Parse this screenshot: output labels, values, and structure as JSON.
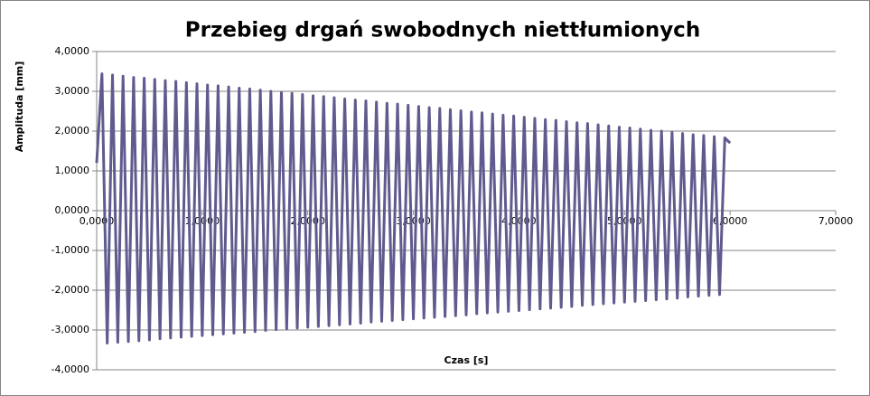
{
  "chart_data": {
    "type": "line",
    "title": "Przebieg drgań swobodnych niettłumionych",
    "xlabel": "Czas [s]",
    "ylabel": "Amplituda [mm]",
    "x": [
      0,
      0.05,
      0.1,
      0.15,
      0.2,
      0.25,
      0.3,
      0.35,
      0.4,
      0.45,
      0.5,
      0.55,
      0.6,
      0.65,
      0.7,
      0.75,
      0.8,
      0.85,
      0.9,
      0.95,
      1,
      1.05,
      1.1,
      1.15,
      1.2,
      1.25,
      1.3,
      1.35,
      1.4,
      1.45,
      1.5,
      1.55,
      1.6,
      1.65,
      1.7,
      1.75,
      1.8,
      1.85,
      1.9,
      1.95,
      2,
      2.05,
      2.1,
      2.15,
      2.2,
      2.25,
      2.3,
      2.35,
      2.4,
      2.45,
      2.5,
      2.55,
      2.6,
      2.65,
      2.7,
      2.75,
      2.8,
      2.85,
      2.9,
      2.95,
      3,
      3.05,
      3.1,
      3.15,
      3.2,
      3.25,
      3.3,
      3.35,
      3.4,
      3.45,
      3.5,
      3.55,
      3.6,
      3.65,
      3.7,
      3.75,
      3.8,
      3.85,
      3.9,
      3.95,
      4,
      4.05,
      4.1,
      4.15,
      4.2,
      4.25,
      4.3,
      4.35,
      4.4,
      4.45,
      4.5,
      4.55,
      4.6,
      4.65,
      4.7,
      4.75,
      4.8,
      4.85,
      4.9,
      4.95,
      5,
      5.05,
      5.1,
      5.15,
      5.2,
      5.25,
      5.3,
      5.35,
      5.4,
      5.45,
      5.5,
      5.55,
      5.6,
      5.65,
      5.7,
      5.75,
      5.8,
      5.85,
      5.9,
      5.95,
      6
    ],
    "series": [
      {
        "color": "#5f5b8e",
        "values": [
          1.2,
          3.44,
          -3.33,
          3.41,
          -3.31,
          3.38,
          -3.29,
          3.35,
          -3.27,
          3.33,
          -3.25,
          3.3,
          -3.22,
          3.27,
          -3.2,
          3.25,
          -3.18,
          3.22,
          -3.16,
          3.19,
          -3.14,
          3.16,
          -3.12,
          3.14,
          -3.1,
          3.11,
          -3.08,
          3.08,
          -3.06,
          3.06,
          -3.04,
          3.03,
          -3.01,
          3.0,
          -2.99,
          2.97,
          -2.97,
          2.95,
          -2.95,
          2.92,
          -2.93,
          2.89,
          -2.91,
          2.87,
          -2.89,
          2.84,
          -2.87,
          2.81,
          -2.85,
          2.78,
          -2.83,
          2.76,
          -2.8,
          2.73,
          -2.78,
          2.7,
          -2.76,
          2.68,
          -2.74,
          2.65,
          -2.72,
          2.62,
          -2.7,
          2.59,
          -2.68,
          2.57,
          -2.66,
          2.54,
          -2.64,
          2.51,
          -2.62,
          2.48,
          -2.59,
          2.46,
          -2.57,
          2.43,
          -2.55,
          2.4,
          -2.53,
          2.38,
          -2.51,
          2.35,
          -2.49,
          2.32,
          -2.47,
          2.29,
          -2.45,
          2.27,
          -2.43,
          2.24,
          -2.41,
          2.21,
          -2.38,
          2.19,
          -2.36,
          2.16,
          -2.34,
          2.13,
          -2.32,
          2.1,
          -2.3,
          2.08,
          -2.28,
          2.05,
          -2.26,
          2.02,
          -2.24,
          2.0,
          -2.22,
          1.97,
          -2.2,
          1.94,
          -2.17,
          1.91,
          -2.15,
          1.89,
          -2.13,
          1.86,
          -2.11,
          1.83,
          1.7
        ]
      }
    ],
    "xlim": [
      0,
      7
    ],
    "xticks": [
      {
        "value": 0,
        "label": "0,0000"
      },
      {
        "value": 1,
        "label": "1,0000"
      },
      {
        "value": 2,
        "label": "2,0000"
      },
      {
        "value": 3,
        "label": "3,0000"
      },
      {
        "value": 4,
        "label": "4,0000"
      },
      {
        "value": 5,
        "label": "5,0000"
      },
      {
        "value": 6,
        "label": "6,0000"
      },
      {
        "value": 7,
        "label": "7,0000"
      }
    ],
    "ylim": [
      -4,
      4
    ],
    "yticks": [
      {
        "value": -4,
        "label": "-4,0000"
      },
      {
        "value": -3,
        "label": "-3,0000"
      },
      {
        "value": -2,
        "label": "-2,0000"
      },
      {
        "value": -1,
        "label": "-1,0000"
      },
      {
        "value": 0,
        "label": "0,0000"
      },
      {
        "value": 1,
        "label": "1,0000"
      },
      {
        "value": 2,
        "label": "2,0000"
      },
      {
        "value": 3,
        "label": "3,0000"
      },
      {
        "value": 4,
        "label": "4,0000"
      }
    ],
    "grid": true
  }
}
